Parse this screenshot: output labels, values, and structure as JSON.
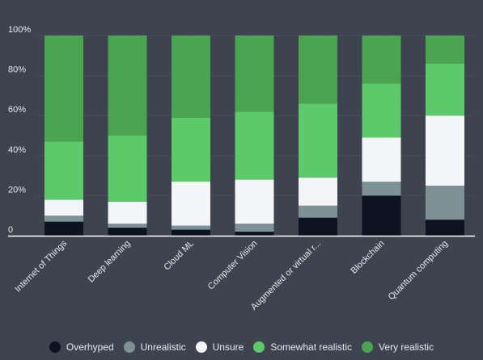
{
  "chart_data": {
    "type": "bar",
    "stacked": true,
    "title": "",
    "xlabel": "",
    "ylabel": "",
    "ylim": [
      0,
      100
    ],
    "y_ticks": [
      "100%",
      "80%",
      "60%",
      "40%",
      "20%",
      "0"
    ],
    "grid": true,
    "legend_position": "bottom",
    "categories": [
      "Internet of Things",
      "Deep learning",
      "Cloud ML",
      "Computer Vision",
      "Augmented or virtual r...",
      "Blockchain",
      "Quantum computing"
    ],
    "series": [
      {
        "name": "Overhyped",
        "color": "#0d1321",
        "values": [
          7,
          4,
          3,
          2,
          9,
          20,
          8
        ]
      },
      {
        "name": "Unrealistic",
        "color": "#7c9297",
        "values": [
          3,
          2,
          2,
          4,
          6,
          7,
          17
        ]
      },
      {
        "name": "Unsure",
        "color": "#f3f5f6",
        "values": [
          8,
          11,
          22,
          22,
          14,
          22,
          35
        ]
      },
      {
        "name": "Somewhat realistic",
        "color": "#5cc96b",
        "values": [
          29,
          33,
          32,
          34,
          37,
          27,
          26
        ]
      },
      {
        "name": "Very realistic",
        "color": "#4aa452",
        "values": [
          53,
          50,
          41,
          38,
          34,
          24,
          14
        ]
      }
    ]
  },
  "colors": {
    "background": "#3d4450",
    "grid": "#5a6170",
    "axis_text": "#e6e8ec"
  }
}
